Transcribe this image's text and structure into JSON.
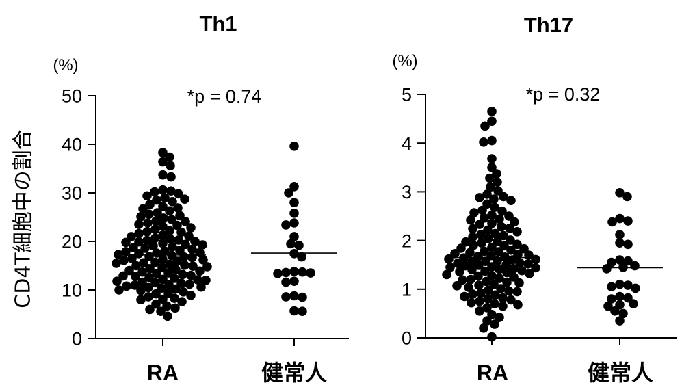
{
  "chart_data": [
    {
      "type": "scatter",
      "title": "Th1",
      "ylabel": "CD4T細胞中の割合",
      "unit_label": "(%)",
      "annotation": "*p = 0.74",
      "ylim": [
        0,
        50
      ],
      "yticks": [
        0,
        10,
        20,
        30,
        40,
        50
      ],
      "grid": false,
      "categories": [
        "RA",
        "健常人"
      ],
      "series": [
        {
          "values": [
            38.3,
            37.4,
            36.4,
            35.6,
            33.7,
            33.3,
            30.6,
            30.4,
            30.2,
            29.8,
            29.4,
            29.0,
            28.7,
            28.5,
            28.2,
            27.6,
            27.2,
            26.9,
            26.7,
            26.3,
            25.9,
            25.6,
            25.3,
            25.1,
            24.8,
            24.5,
            24.2,
            24.1,
            23.8,
            23.5,
            23.3,
            23.1,
            22.8,
            22.5,
            22.2,
            22.0,
            21.9,
            21.6,
            21.3,
            21.1,
            21.0,
            20.7,
            20.5,
            20.3,
            20.2,
            20.0,
            19.9,
            19.8,
            19.6,
            19.4,
            19.3,
            19.1,
            18.9,
            18.7,
            18.6,
            18.4,
            18.2,
            18.0,
            17.9,
            17.7,
            17.6,
            17.5,
            17.3,
            17.1,
            16.9,
            16.8,
            16.7,
            16.5,
            16.3,
            16.2,
            16.1,
            15.9,
            15.7,
            15.6,
            15.5,
            15.3,
            15.1,
            15.0,
            14.9,
            14.8,
            14.6,
            14.4,
            14.2,
            14.0,
            13.9,
            13.7,
            13.5,
            13.4,
            13.2,
            13.0,
            12.9,
            12.8,
            12.6,
            12.4,
            12.2,
            12.1,
            12.0,
            11.8,
            11.6,
            11.5,
            11.4,
            11.2,
            11.1,
            11.0,
            10.8,
            10.6,
            10.5,
            10.4,
            10.2,
            10.0,
            9.9,
            9.6,
            9.4,
            9.2,
            8.9,
            8.6,
            8.3,
            8.1,
            8.0,
            7.6,
            7.1,
            6.7,
            6.3,
            6.0,
            5.6,
            4.6
          ],
          "line_value": 17.2
        },
        {
          "values": [
            39.6,
            31.3,
            30.0,
            28.0,
            25.8,
            23.8,
            23.4,
            21.0,
            19.5,
            19.2,
            17.5,
            16.8,
            13.8,
            13.7,
            13.6,
            13.5,
            13.4,
            11.8,
            11.6,
            8.8,
            8.6,
            8.5,
            5.7,
            5.6
          ],
          "line_value": 17.6
        }
      ]
    },
    {
      "type": "scatter",
      "title": "Th17",
      "unit_label": "(%)",
      "annotation": "*p = 0.32",
      "ylim": [
        0,
        5
      ],
      "yticks": [
        0,
        1,
        2,
        3,
        4,
        5
      ],
      "grid": false,
      "categories": [
        "RA",
        "健常人"
      ],
      "series": [
        {
          "values": [
            4.65,
            4.45,
            4.35,
            4.05,
            4.02,
            3.68,
            3.5,
            3.37,
            3.28,
            3.2,
            3.1,
            3.02,
            2.95,
            2.9,
            2.88,
            2.85,
            2.82,
            2.75,
            2.68,
            2.62,
            2.6,
            2.57,
            2.52,
            2.5,
            2.46,
            2.44,
            2.42,
            2.38,
            2.35,
            2.33,
            2.28,
            2.25,
            2.24,
            2.21,
            2.18,
            2.14,
            2.12,
            2.1,
            2.07,
            2.04,
            2.01,
            1.98,
            1.97,
            1.95,
            1.92,
            1.9,
            1.89,
            1.86,
            1.84,
            1.83,
            1.8,
            1.78,
            1.77,
            1.75,
            1.73,
            1.71,
            1.7,
            1.69,
            1.67,
            1.66,
            1.64,
            1.62,
            1.61,
            1.6,
            1.58,
            1.57,
            1.56,
            1.54,
            1.53,
            1.52,
            1.5,
            1.49,
            1.48,
            1.46,
            1.45,
            1.44,
            1.42,
            1.41,
            1.4,
            1.38,
            1.37,
            1.36,
            1.34,
            1.32,
            1.3,
            1.28,
            1.27,
            1.25,
            1.22,
            1.2,
            1.19,
            1.16,
            1.14,
            1.13,
            1.1,
            1.08,
            1.07,
            1.04,
            1.01,
            0.98,
            0.96,
            0.95,
            0.92,
            0.9,
            0.88,
            0.85,
            0.82,
            0.8,
            0.78,
            0.75,
            0.72,
            0.7,
            0.68,
            0.65,
            0.62,
            0.55,
            0.48,
            0.42,
            0.35,
            0.28,
            0.2,
            0.02
          ],
          "line_value": 1.65
        },
        {
          "values": [
            2.98,
            2.9,
            2.45,
            2.4,
            2.38,
            2.12,
            1.95,
            1.92,
            1.6,
            1.58,
            1.55,
            1.48,
            1.45,
            1.42,
            1.1,
            1.08,
            1.05,
            1.02,
            0.85,
            0.82,
            0.8,
            0.7,
            0.68,
            0.65,
            0.55,
            0.5,
            0.35
          ],
          "line_value": 1.44
        }
      ]
    }
  ],
  "colors": {
    "points": "#000000",
    "axes": "#000000",
    "background": "#ffffff"
  }
}
